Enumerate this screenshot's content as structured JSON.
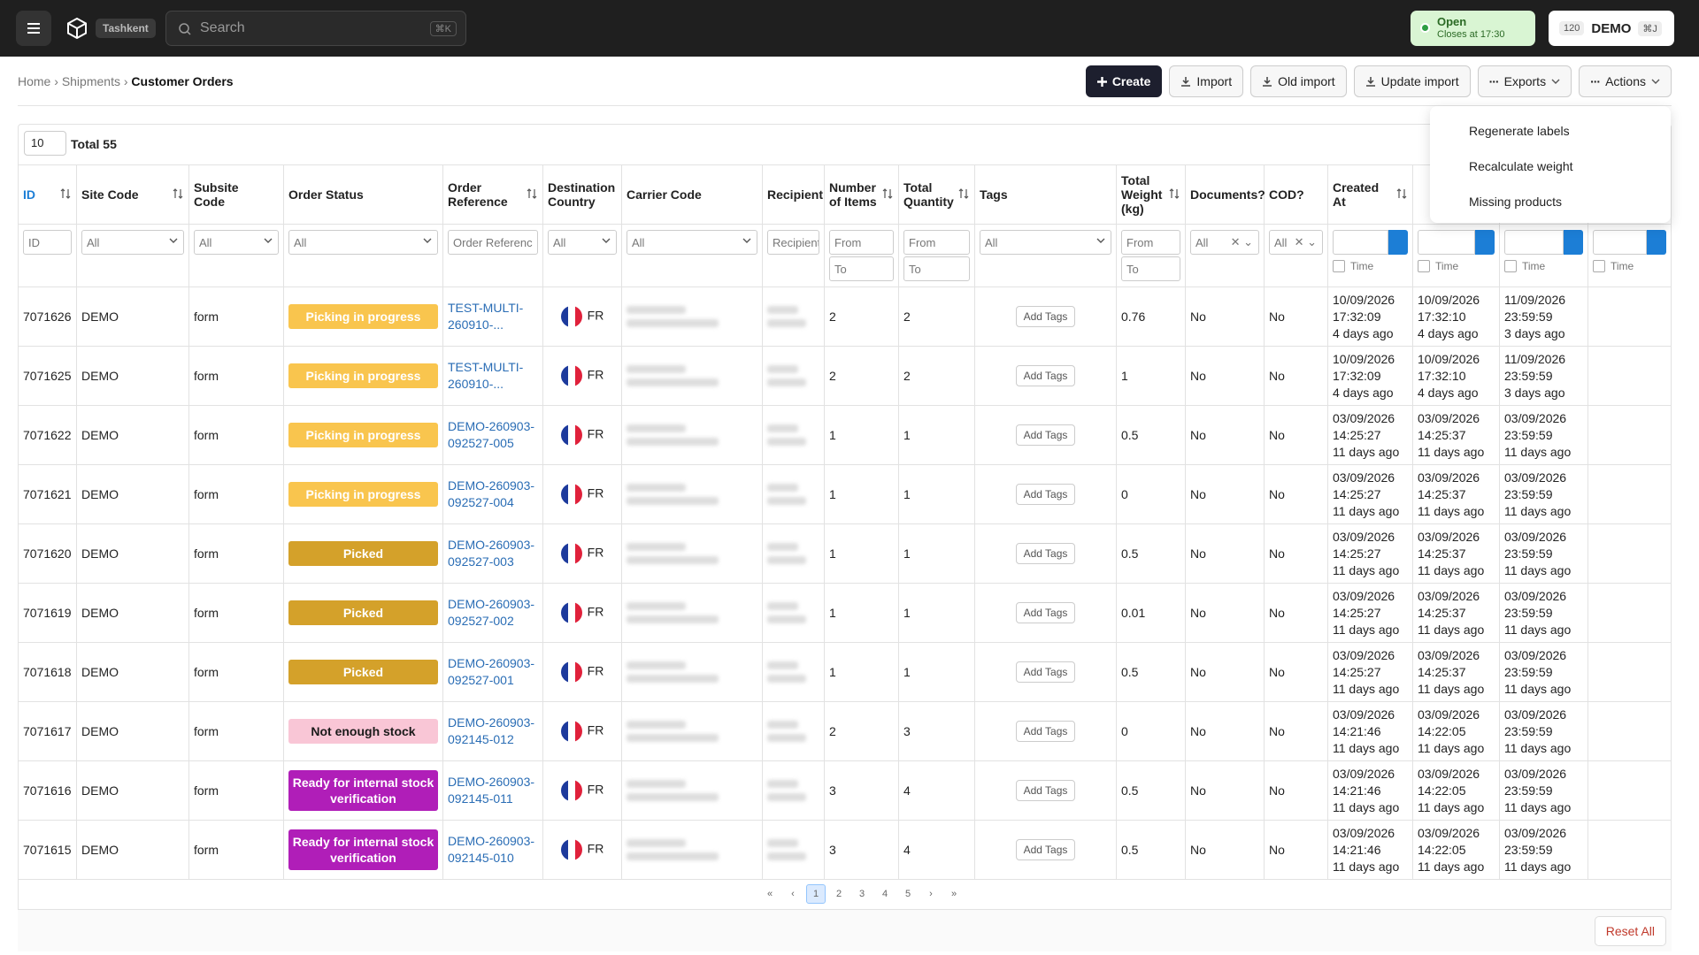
{
  "header": {
    "brand": "Tashkent",
    "search": "Search",
    "search_shortcut": "⌘K",
    "status": "Open",
    "status_sub": "Closes at 17:30",
    "badge": "120",
    "account": "DEMO",
    "account_shortcut": "⌘J"
  },
  "breadcrumb": [
    "Home",
    "Shipments",
    "Customer Orders"
  ],
  "toolbar": [
    "Create",
    "Import",
    "Old import",
    "Update import",
    "Exports",
    "Actions"
  ],
  "actions_menu": [
    "Regenerate labels",
    "Recalculate weight",
    "Missing products"
  ],
  "table": {
    "page_size": "10",
    "total": "Total 55",
    "columns": [
      "ID",
      "Site Code",
      "Subsite Code",
      "Order Status",
      "Order Reference",
      "Destination Country",
      "Carrier Code",
      "Recipient",
      "Number of Items",
      "Total Quantity",
      "Tags",
      "Total Weight (kg)",
      "Documents?",
      "COD?",
      "Created At"
    ],
    "filters": [
      "ID",
      "All",
      "All",
      "All",
      "Order Referenc",
      "All",
      "All",
      "Recipient",
      [
        "From",
        "To"
      ],
      [
        "From",
        "To"
      ],
      "All",
      [
        "From",
        "To"
      ],
      "All",
      "All",
      "Time",
      "Time",
      "Time",
      "Time"
    ],
    "rows": [
      {
        "id": "7071626",
        "site": "DEMO",
        "subsite": "form",
        "status": {
          "label": "Picking in progress",
          "color": "#f9c54e",
          "text": "#ffffff"
        },
        "ref": "TEST-MULTI-260910-...",
        "country": "FR",
        "items": "2",
        "quantity": "2",
        "tags": "Add Tags",
        "weight": "0.76",
        "documents": "No",
        "cod": "No",
        "dates": [
          [
            "10/09/2026",
            "17:32:09",
            "4 days ago"
          ],
          [
            "10/09/2026",
            "17:32:10",
            "4 days ago"
          ],
          [
            "11/09/2026",
            "23:59:59",
            "3 days ago"
          ]
        ]
      },
      {
        "id": "7071625",
        "site": "DEMO",
        "subsite": "form",
        "status": {
          "label": "Picking in progress",
          "color": "#f9c54e",
          "text": "#ffffff"
        },
        "ref": "TEST-MULTI-260910-...",
        "country": "FR",
        "items": "2",
        "quantity": "2",
        "tags": "Add Tags",
        "weight": "1",
        "documents": "No",
        "cod": "No",
        "dates": [
          [
            "10/09/2026",
            "17:32:09",
            "4 days ago"
          ],
          [
            "10/09/2026",
            "17:32:10",
            "4 days ago"
          ],
          [
            "11/09/2026",
            "23:59:59",
            "3 days ago"
          ]
        ]
      },
      {
        "id": "7071622",
        "site": "DEMO",
        "subsite": "form",
        "status": {
          "label": "Picking in progress",
          "color": "#f9c54e",
          "text": "#ffffff"
        },
        "ref": "DEMO-260903-092527-005",
        "country": "FR",
        "items": "1",
        "quantity": "1",
        "tags": "Add Tags",
        "weight": "0.5",
        "documents": "No",
        "cod": "No",
        "dates": [
          [
            "03/09/2026",
            "14:25:27",
            "11 days ago"
          ],
          [
            "03/09/2026",
            "14:25:37",
            "11 days ago"
          ],
          [
            "03/09/2026",
            "23:59:59",
            "11 days ago"
          ]
        ]
      },
      {
        "id": "7071621",
        "site": "DEMO",
        "subsite": "form",
        "status": {
          "label": "Picking in progress",
          "color": "#f9c54e",
          "text": "#ffffff"
        },
        "ref": "DEMO-260903-092527-004",
        "country": "FR",
        "items": "1",
        "quantity": "1",
        "tags": "Add Tags",
        "weight": "0",
        "documents": "No",
        "cod": "No",
        "dates": [
          [
            "03/09/2026",
            "14:25:27",
            "11 days ago"
          ],
          [
            "03/09/2026",
            "14:25:37",
            "11 days ago"
          ],
          [
            "03/09/2026",
            "23:59:59",
            "11 days ago"
          ]
        ]
      },
      {
        "id": "7071620",
        "site": "DEMO",
        "subsite": "form",
        "status": {
          "label": "Picked",
          "color": "#d4a12a",
          "text": "#ffffff"
        },
        "ref": "DEMO-260903-092527-003",
        "country": "FR",
        "items": "1",
        "quantity": "1",
        "tags": "Add Tags",
        "weight": "0.5",
        "documents": "No",
        "cod": "No",
        "dates": [
          [
            "03/09/2026",
            "14:25:27",
            "11 days ago"
          ],
          [
            "03/09/2026",
            "14:25:37",
            "11 days ago"
          ],
          [
            "03/09/2026",
            "23:59:59",
            "11 days ago"
          ]
        ]
      },
      {
        "id": "7071619",
        "site": "DEMO",
        "subsite": "form",
        "status": {
          "label": "Picked",
          "color": "#d4a12a",
          "text": "#ffffff"
        },
        "ref": "DEMO-260903-092527-002",
        "country": "FR",
        "items": "1",
        "quantity": "1",
        "tags": "Add Tags",
        "weight": "0.01",
        "documents": "No",
        "cod": "No",
        "dates": [
          [
            "03/09/2026",
            "14:25:27",
            "11 days ago"
          ],
          [
            "03/09/2026",
            "14:25:37",
            "11 days ago"
          ],
          [
            "03/09/2026",
            "23:59:59",
            "11 days ago"
          ]
        ]
      },
      {
        "id": "7071618",
        "site": "DEMO",
        "subsite": "form",
        "status": {
          "label": "Picked",
          "color": "#d4a12a",
          "text": "#ffffff"
        },
        "ref": "DEMO-260903-092527-001",
        "country": "FR",
        "items": "1",
        "quantity": "1",
        "tags": "Add Tags",
        "weight": "0.5",
        "documents": "No",
        "cod": "No",
        "dates": [
          [
            "03/09/2026",
            "14:25:27",
            "11 days ago"
          ],
          [
            "03/09/2026",
            "14:25:37",
            "11 days ago"
          ],
          [
            "03/09/2026",
            "23:59:59",
            "11 days ago"
          ]
        ]
      },
      {
        "id": "7071617",
        "site": "DEMO",
        "subsite": "form",
        "status": {
          "label": "Not enough stock",
          "color": "#f9c6d6",
          "text": "#1a1a1a"
        },
        "ref": "DEMO-260903-092145-012",
        "country": "FR",
        "items": "2",
        "quantity": "3",
        "tags": "Add Tags",
        "weight": "0",
        "documents": "No",
        "cod": "No",
        "dates": [
          [
            "03/09/2026",
            "14:21:46",
            "11 days ago"
          ],
          [
            "03/09/2026",
            "14:22:05",
            "11 days ago"
          ],
          [
            "03/09/2026",
            "23:59:59",
            "11 days ago"
          ]
        ]
      },
      {
        "id": "7071616",
        "site": "DEMO",
        "subsite": "form",
        "status": {
          "label": "Ready for internal stock verification",
          "color": "#b01eb8",
          "text": "#ffffff"
        },
        "ref": "DEMO-260903-092145-011",
        "country": "FR",
        "items": "3",
        "quantity": "4",
        "tags": "Add Tags",
        "weight": "0.5",
        "documents": "No",
        "cod": "No",
        "dates": [
          [
            "03/09/2026",
            "14:21:46",
            "11 days ago"
          ],
          [
            "03/09/2026",
            "14:22:05",
            "11 days ago"
          ],
          [
            "03/09/2026",
            "23:59:59",
            "11 days ago"
          ]
        ]
      },
      {
        "id": "7071615",
        "site": "DEMO",
        "subsite": "form",
        "status": {
          "label": "Ready for internal stock verification",
          "color": "#b01eb8",
          "text": "#ffffff"
        },
        "ref": "DEMO-260903-092145-010",
        "country": "FR",
        "items": "3",
        "quantity": "4",
        "tags": "Add Tags",
        "weight": "0.5",
        "documents": "No",
        "cod": "No",
        "dates": [
          [
            "03/09/2026",
            "14:21:46",
            "11 days ago"
          ],
          [
            "03/09/2026",
            "14:22:05",
            "11 days ago"
          ],
          [
            "03/09/2026",
            "23:59:59",
            "11 days ago"
          ]
        ]
      }
    ]
  },
  "pagination": [
    "«",
    "‹",
    "1",
    "2",
    "3",
    "4",
    "5",
    "›",
    "»"
  ],
  "reset": "Reset All"
}
